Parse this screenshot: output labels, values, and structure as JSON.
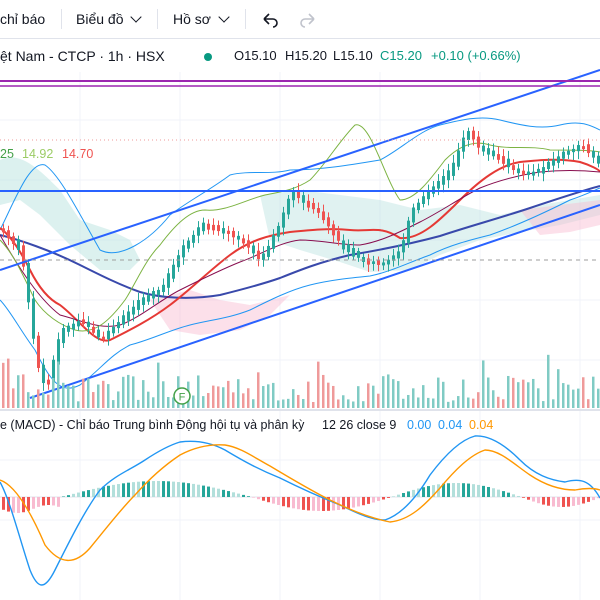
{
  "toolbar": {
    "indicators_label": "chỉ báo",
    "chart_label": "Biểu đồ",
    "profile_label": "Hồ sơ"
  },
  "legend": {
    "symbol": "ệt Nam - CTCP · 1h · HSX",
    "open": "O15.10",
    "high": "H15.20",
    "low": "L15.10",
    "close": "C15.20",
    "change": "+0.10 (+0.66%)",
    "ind_v1": "25",
    "ind_v2": "14.92",
    "ind_v3": "14.70"
  },
  "oscillator": {
    "name": "e (MACD) - Chỉ báo Trung bình Động hội tụ và phân kỳ",
    "params": "12 26 close 9",
    "v1": "0.00",
    "v2": "0.04",
    "v3": "0.04"
  },
  "marker": {
    "letter": "F"
  },
  "colors": {
    "up": "#26a69a",
    "down": "#ef5350",
    "channel": "#2962ff",
    "bb": "#2196f3",
    "ma_red": "#e53935",
    "ma_dark": "#880e4f",
    "ma_navy": "#3949ab",
    "cloud_green": "#b2dfdb",
    "cloud_red": "#f8bbd0",
    "macd_blue": "#2196f3",
    "signal_orange": "#ff9800",
    "purple": "#9c27b0"
  }
}
